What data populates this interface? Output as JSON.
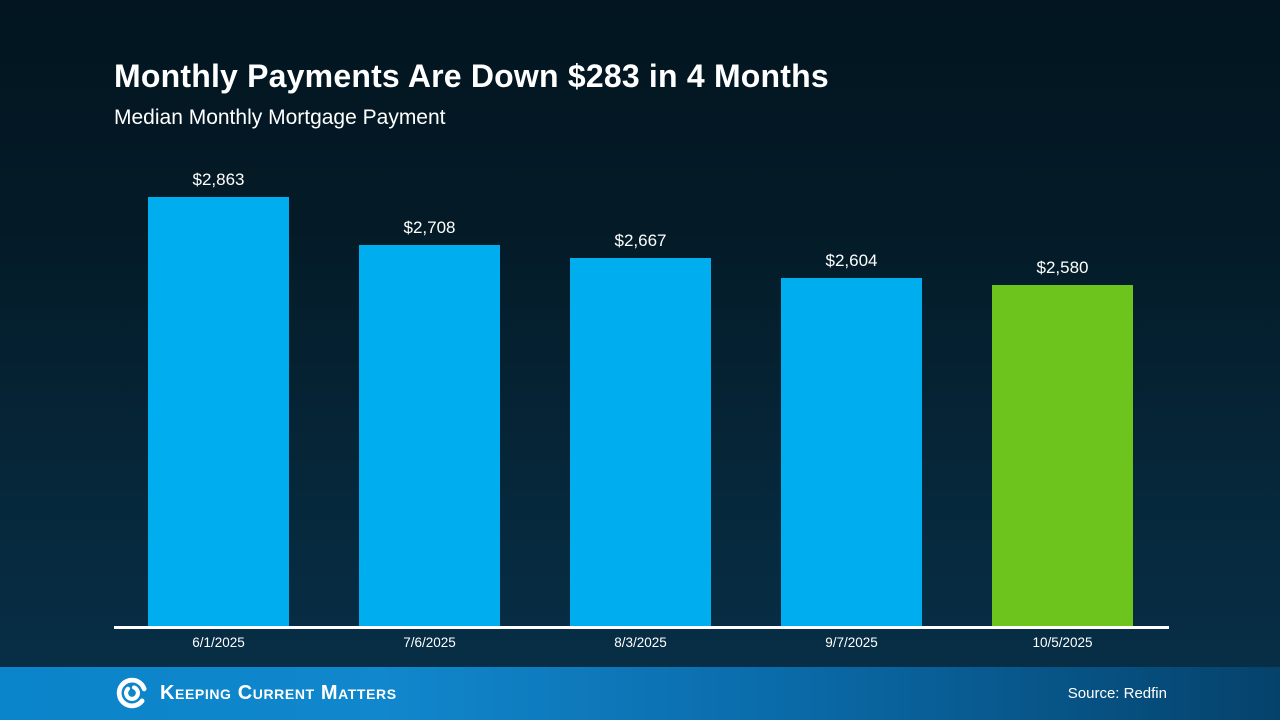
{
  "slide": {
    "title": "Monthly Payments Are Down $283 in 4 Months",
    "subtitle": "Median Monthly Mortgage Payment"
  },
  "chart_data": {
    "type": "bar",
    "title": "Monthly Payments Are Down $283 in 4 Months",
    "subtitle": "Median Monthly Mortgage Payment",
    "categories": [
      "6/1/2025",
      "7/6/2025",
      "8/3/2025",
      "9/7/2025",
      "10/5/2025"
    ],
    "values": [
      2863,
      2708,
      2667,
      2604,
      2580
    ],
    "value_labels": [
      "$2,863",
      "$2,708",
      "$2,667",
      "$2,604",
      "$2,580"
    ],
    "bar_colors": [
      "#00AEEF",
      "#00AEEF",
      "#00AEEF",
      "#00AEEF",
      "#6CC41C"
    ],
    "default_bar_color": "#00AEEF",
    "highlight_bar_color": "#6CC41C",
    "ylim": [
      1478,
      2900
    ],
    "xlabel": "",
    "ylabel": "",
    "grid": false,
    "legend": false,
    "axis_line_color": "#FFFFFF",
    "label_color": "#FFFFFF"
  },
  "footer": {
    "brand": "Keeping Current Matters",
    "source": "Source: Redfin",
    "logo_icon": "kcm-spiral-logo",
    "gradient_left": "#0A84CA",
    "gradient_right": "#05426B"
  },
  "background": {
    "top": "#021520",
    "bottom": "#083049"
  }
}
